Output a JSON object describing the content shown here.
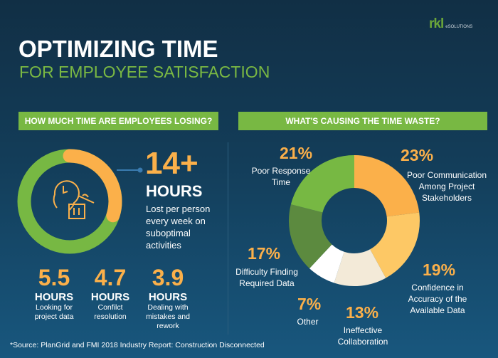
{
  "logo": {
    "mark": "rkl",
    "sub": "eSOLUTIONS"
  },
  "header": {
    "title": "OPTIMIZING TIME",
    "subtitle": "FOR EMPLOYEE SATISFACTION"
  },
  "left": {
    "heading": "HOW MUCH TIME ARE EMPLOYEES LOSING?",
    "main": {
      "value": "14+",
      "unit": "HOURS",
      "desc": "Lost per person every week on suboptimal activities",
      "ring_fraction": 0.3
    },
    "stats": [
      {
        "value": "5.5",
        "unit": "HOURS",
        "desc": "Looking for project data"
      },
      {
        "value": "4.7",
        "unit": "HOURS",
        "desc": "Confilct resolution"
      },
      {
        "value": "3.9",
        "unit": "HOURS",
        "desc": "Dealing with mistakes and rework"
      }
    ]
  },
  "right": {
    "heading": "WHAT'S CAUSING THE TIME WASTE?"
  },
  "source": "*Source: PlanGrid and FMI 2018 Industry Report: Construction Disconnected",
  "chart_data": {
    "type": "pie",
    "donut": true,
    "categories": [
      "Poor Communication Among Project Stakeholders",
      "Confidence in Accuracy of the Available Data",
      "Ineffective Collaboration",
      "Other",
      "Difficulty Finding Required Data",
      "Poor Response Time"
    ],
    "values": [
      23,
      19,
      13,
      7,
      17,
      21
    ],
    "labels": [
      "23%",
      "19%",
      "13%",
      "7%",
      "17%",
      "21%"
    ],
    "colors": [
      "#fbb04a",
      "#fdc865",
      "#f3ead8",
      "#ffffff",
      "#5c8a3f",
      "#77b843"
    ]
  },
  "colors": {
    "green": "#78b843",
    "orange": "#fbb04a"
  }
}
